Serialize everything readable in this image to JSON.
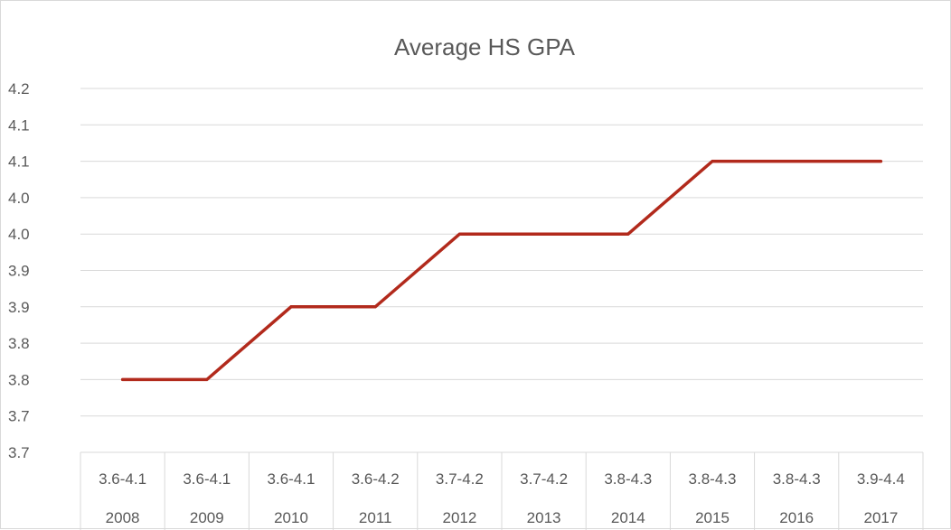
{
  "chart_data": {
    "type": "line",
    "title": "Average HS GPA",
    "xlabel": "",
    "ylabel": "",
    "categories": [
      {
        "range": "3.6-4.1",
        "year": "2008"
      },
      {
        "range": "3.6-4.1",
        "year": "2009"
      },
      {
        "range": "3.6-4.1",
        "year": "2010"
      },
      {
        "range": "3.6-4.2",
        "year": "2011"
      },
      {
        "range": "3.7-4.2",
        "year": "2012"
      },
      {
        "range": "3.7-4.2",
        "year": "2013"
      },
      {
        "range": "3.8-4.3",
        "year": "2014"
      },
      {
        "range": "3.8-4.3",
        "year": "2015"
      },
      {
        "range": "3.8-4.3",
        "year": "2016"
      },
      {
        "range": "3.9-4.4",
        "year": "2017"
      }
    ],
    "series": [
      {
        "values": [
          3.78,
          3.78,
          3.88,
          3.88,
          3.98,
          3.98,
          3.98,
          4.08,
          4.08,
          4.08
        ]
      }
    ],
    "ylim": [
      3.68,
      4.18
    ],
    "yticks": [
      {
        "value": 3.68,
        "label": "3.7"
      },
      {
        "value": 3.73,
        "label": "3.7"
      },
      {
        "value": 3.78,
        "label": "3.8"
      },
      {
        "value": 3.83,
        "label": "3.8"
      },
      {
        "value": 3.88,
        "label": "3.9"
      },
      {
        "value": 3.93,
        "label": "3.9"
      },
      {
        "value": 3.98,
        "label": "4.0"
      },
      {
        "value": 4.03,
        "label": "4.0"
      },
      {
        "value": 4.08,
        "label": "4.1"
      },
      {
        "value": 4.13,
        "label": "4.1"
      },
      {
        "value": 4.18,
        "label": "4.2"
      }
    ],
    "grid": true,
    "legend": "none",
    "colors": {
      "line": "#b22a1c",
      "grid": "#d9d9d9",
      "text": "#595959"
    }
  }
}
